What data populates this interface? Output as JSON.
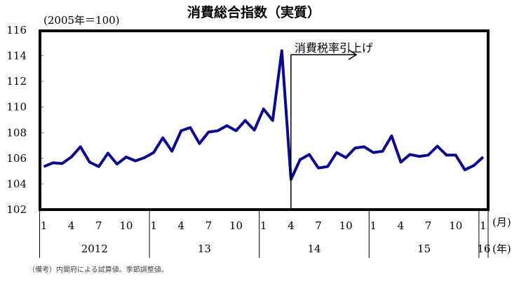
{
  "chart_data": {
    "type": "line",
    "title": "消費総合指数（実質）",
    "subtitle": "(2005年＝100)",
    "xlabel_month_unit": "(月)",
    "xlabel_year_unit": "(年)",
    "ylabel": "",
    "ylim": [
      102,
      116
    ],
    "yticks": [
      102,
      104,
      106,
      108,
      110,
      112,
      114,
      116
    ],
    "grid": false,
    "legend": null,
    "month_tick_labels": [
      {
        "label": "1",
        "index": 0
      },
      {
        "label": "4",
        "index": 3
      },
      {
        "label": "7",
        "index": 6
      },
      {
        "label": "10",
        "index": 9
      },
      {
        "label": "1",
        "index": 12
      },
      {
        "label": "4",
        "index": 15
      },
      {
        "label": "7",
        "index": 18
      },
      {
        "label": "10",
        "index": 21
      },
      {
        "label": "1",
        "index": 24
      },
      {
        "label": "4",
        "index": 27
      },
      {
        "label": "7",
        "index": 30
      },
      {
        "label": "10",
        "index": 33
      },
      {
        "label": "1",
        "index": 36
      },
      {
        "label": "4",
        "index": 39
      },
      {
        "label": "7",
        "index": 42
      },
      {
        "label": "10",
        "index": 45
      },
      {
        "label": "1",
        "index": 48
      }
    ],
    "year_labels": [
      {
        "label": "2012",
        "start": 0,
        "end": 12
      },
      {
        "label": "13",
        "start": 12,
        "end": 24
      },
      {
        "label": "14",
        "start": 24,
        "end": 36
      },
      {
        "label": "15",
        "start": 36,
        "end": 48
      },
      {
        "label": "16",
        "start": 48,
        "end": 49
      }
    ],
    "x": [
      "2012-01",
      "2012-02",
      "2012-03",
      "2012-04",
      "2012-05",
      "2012-06",
      "2012-07",
      "2012-08",
      "2012-09",
      "2012-10",
      "2012-11",
      "2012-12",
      "2013-01",
      "2013-02",
      "2013-03",
      "2013-04",
      "2013-05",
      "2013-06",
      "2013-07",
      "2013-08",
      "2013-09",
      "2013-10",
      "2013-11",
      "2013-12",
      "2014-01",
      "2014-02",
      "2014-03",
      "2014-04",
      "2014-05",
      "2014-06",
      "2014-07",
      "2014-08",
      "2014-09",
      "2014-10",
      "2014-11",
      "2014-12",
      "2015-01",
      "2015-02",
      "2015-03",
      "2015-04",
      "2015-05",
      "2015-06",
      "2015-07",
      "2015-08",
      "2015-09",
      "2015-10",
      "2015-11",
      "2015-12",
      "2016-01"
    ],
    "series": [
      {
        "name": "消費総合指数（実質）",
        "color": "#0a0a8c",
        "values": [
          105.35,
          105.65,
          105.6,
          106.1,
          106.9,
          105.7,
          105.35,
          106.4,
          105.55,
          106.1,
          105.8,
          106.05,
          106.45,
          107.6,
          106.55,
          108.15,
          108.4,
          107.15,
          108.05,
          108.15,
          108.55,
          108.15,
          108.95,
          108.2,
          109.85,
          108.95,
          114.4,
          104.35,
          105.9,
          106.3,
          105.25,
          105.35,
          106.45,
          106.05,
          106.8,
          106.9,
          106.45,
          106.55,
          107.75,
          105.7,
          106.3,
          106.15,
          106.25,
          106.95,
          106.25,
          106.25,
          105.1,
          105.45,
          106.1
        ]
      }
    ],
    "annotations": [
      {
        "text": "消費税率引上げ",
        "at_index": 27,
        "type": "arrow-right"
      }
    ]
  },
  "footnote": "（備考）内閣府による試算値。季節調整値。"
}
